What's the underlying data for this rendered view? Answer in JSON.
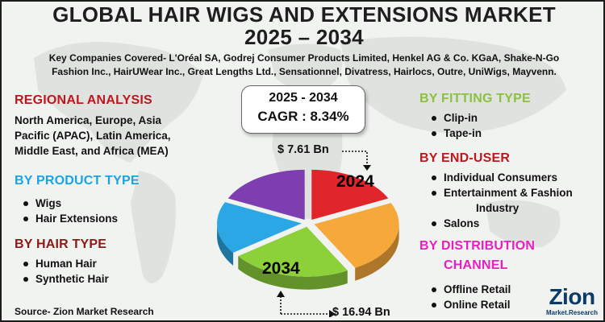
{
  "title_line1": "GLOBAL HAIR WIGS AND EXTENSIONS MARKET",
  "title_line2": "2025 – 2034",
  "companies_line1": "Key Companies Covered- L'Oréal SA, Godrej Consumer Products Limited, Henkel AG & Co. KGaA, Shake-N-Go",
  "companies_line2": "Fashion Inc., HairUWear Inc., Great Lengths Ltd., Sensationnel, Divatress, Hairlocs, Outre, UniWigs, Mayvenn.",
  "regional": {
    "heading": "REGIONAL ANALYSIS",
    "line1": "North America, Europe, Asia",
    "line2": "Pacific (APAC), Latin America,",
    "line3": "Middle East, and Africa (MEA)"
  },
  "product_type": {
    "heading": "BY PRODUCT TYPE",
    "items": [
      "Wigs",
      "Hair Extensions"
    ]
  },
  "hair_type": {
    "heading": "BY HAIR TYPE",
    "items": [
      "Human Hair",
      "Synthetic Hair"
    ]
  },
  "fitting_type": {
    "heading": "BY FITTING TYPE",
    "items": [
      "Clip-in",
      "Tape-in"
    ]
  },
  "end_user": {
    "heading": "BY END-USER",
    "items": [
      "Individual Consumers",
      "Entertainment & Fashion",
      "Industry",
      "Salons"
    ]
  },
  "distribution": {
    "heading_line1": "BY DISTRIBUTION",
    "heading_line2": "CHANNEL",
    "items": [
      "Offline Retail",
      "Online Retail"
    ]
  },
  "cagr": {
    "period": "2025 - 2034",
    "value": "CAGR : 8.34%"
  },
  "value_2024": "$  7.61 Bn",
  "value_2034": "$ 16.94 Bn",
  "year_2024": "2024",
  "year_2034": "2034",
  "source": "Source- Zion Market Research",
  "logo": {
    "name": "Zion",
    "sub": "Market.Research"
  },
  "colors": {
    "regional": "#c0161c",
    "product": "#1aa3e6",
    "hair": "#8c1a16",
    "fitting": "#8cc13f",
    "end_user": "#c0161c",
    "distribution": "#e81fbf",
    "pie_red": "#e0262a",
    "pie_orange": "#f7a83a",
    "pie_green": "#8cd13a",
    "pie_blue": "#2aa7e4",
    "pie_purple": "#7d3fb0"
  },
  "pie_slices": [
    {
      "name": "red",
      "fraction": 0.18
    },
    {
      "name": "orange",
      "fraction": 0.24
    },
    {
      "name": "green",
      "fraction": 0.23
    },
    {
      "name": "blue",
      "fraction": 0.17
    },
    {
      "name": "purple",
      "fraction": 0.18
    }
  ]
}
